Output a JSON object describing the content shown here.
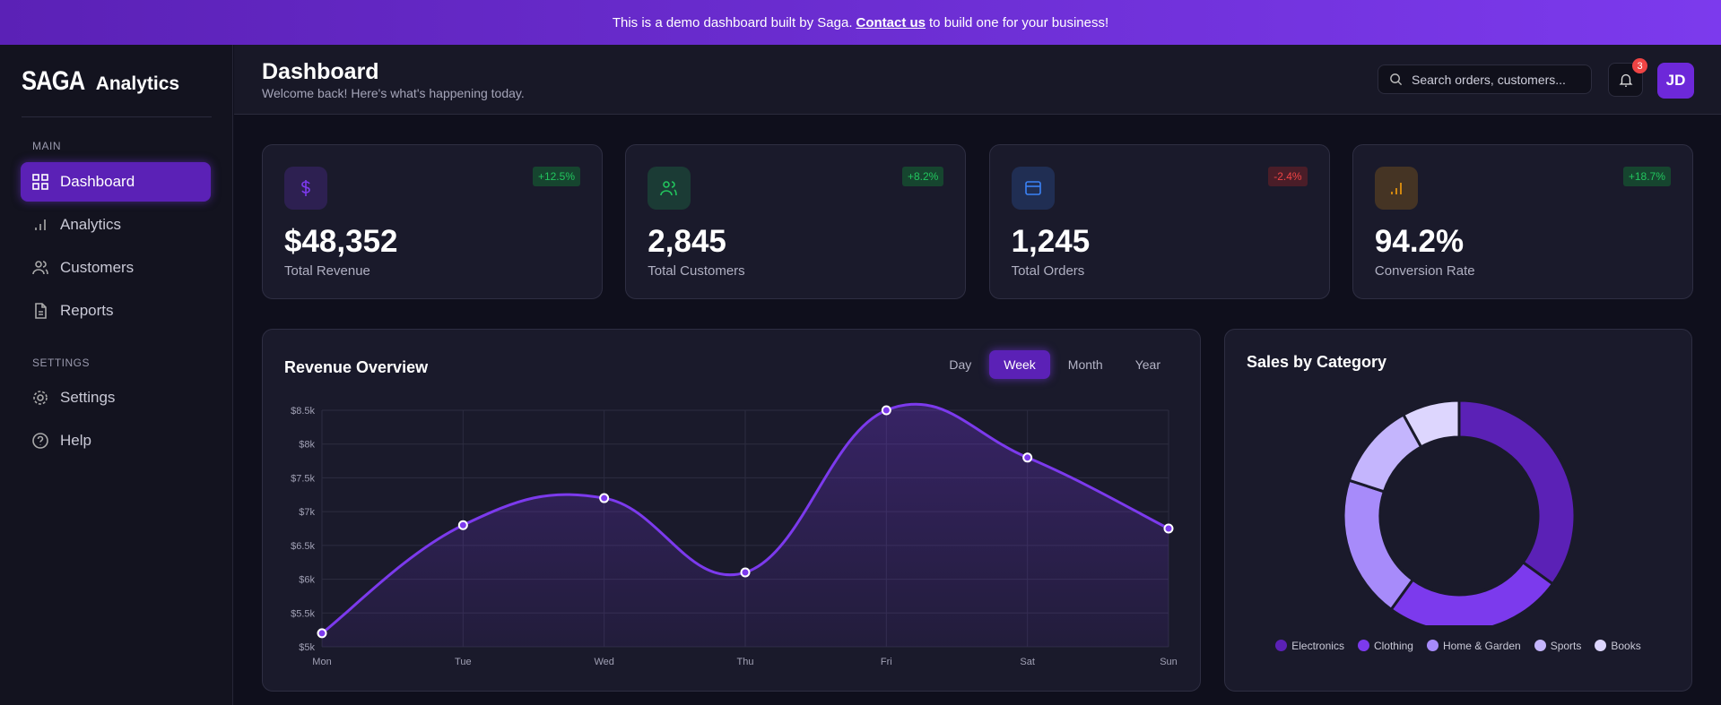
{
  "banner": {
    "pre": "This is a demo dashboard built by Saga.",
    "link": "Contact us",
    "post": "to build one for your business!"
  },
  "sidebar": {
    "logo": "SAGA",
    "logo_sub": "Analytics",
    "main_label": "MAIN",
    "settings_label": "SETTINGS",
    "items": [
      {
        "label": "Dashboard",
        "icon": "grid-icon",
        "active": true
      },
      {
        "label": "Analytics",
        "icon": "bar-chart-icon"
      },
      {
        "label": "Customers",
        "icon": "users-icon"
      },
      {
        "label": "Reports",
        "icon": "file-icon"
      }
    ],
    "settings_items": [
      {
        "label": "Settings",
        "icon": "gear-icon"
      },
      {
        "label": "Help",
        "icon": "help-circle-icon"
      }
    ]
  },
  "header": {
    "title": "Dashboard",
    "subtitle": "Welcome back! Here's what's happening today.",
    "search_placeholder": "Search orders, customers...",
    "notifications": "3",
    "avatar": "JD"
  },
  "stats": [
    {
      "value": "$48,352",
      "label": "Total Revenue",
      "change": "+12.5%",
      "trend": "up",
      "icon": "dollar-icon",
      "color": "#7c3aed"
    },
    {
      "value": "2,845",
      "label": "Total Customers",
      "change": "+8.2%",
      "trend": "up",
      "icon": "users-icon",
      "color": "#22c55e"
    },
    {
      "value": "1,245",
      "label": "Total Orders",
      "change": "-2.4%",
      "trend": "down",
      "icon": "credit-card-icon",
      "color": "#3b82f6"
    },
    {
      "value": "94.2%",
      "label": "Conversion Rate",
      "change": "+18.7%",
      "trend": "up",
      "icon": "bar-chart-icon",
      "color": "#f59e0b"
    }
  ],
  "chart_data": [
    {
      "type": "area",
      "title": "Revenue Overview",
      "tabs": [
        "Day",
        "Week",
        "Month",
        "Year"
      ],
      "active_tab": "Week",
      "categories": [
        "Mon",
        "Tue",
        "Wed",
        "Thu",
        "Fri",
        "Sat",
        "Sun"
      ],
      "values": [
        5200,
        6800,
        7200,
        6100,
        8500,
        7800,
        6750
      ],
      "ylim": [
        5000,
        8500
      ],
      "yticks": [
        "$5k",
        "$5.5k",
        "$6k",
        "$6.5k",
        "$7k",
        "$7.5k",
        "$8k",
        "$8.5k"
      ],
      "grid": true,
      "color": "#7c3aed"
    },
    {
      "type": "pie",
      "title": "Sales by Category",
      "donut": true,
      "legend": "bottom",
      "categories": [
        "Electronics",
        "Clothing",
        "Home & Garden",
        "Sports",
        "Books"
      ],
      "values": [
        35,
        25,
        20,
        12,
        8
      ],
      "colors": [
        "#5b21b6",
        "#7c3aed",
        "#a78bfa",
        "#c4b5fd",
        "#ddd6fe"
      ]
    }
  ]
}
